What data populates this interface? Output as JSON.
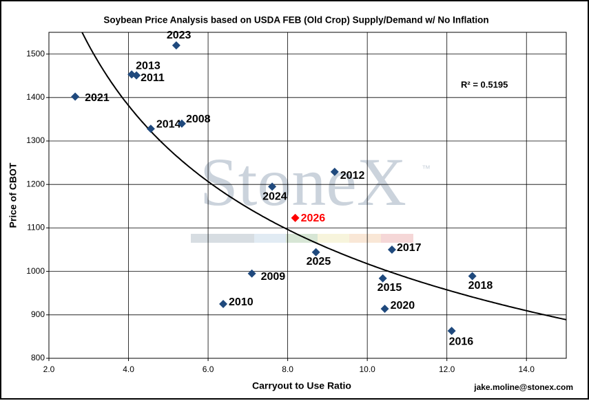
{
  "chart_data": {
    "type": "scatter",
    "title": "Soybean Price Analysis based on USDA FEB (Old Crop) Supply/Demand w/ No Inflation",
    "x_label": "Carryout to Use Ratio",
    "y_label": "Price of CBOT",
    "annotation": "R² = 0.5195",
    "credit": "jake.moline@stonex.com",
    "watermark": "StoneX",
    "watermark_mark": "™",
    "xlim": [
      2,
      15
    ],
    "xticks": [
      {
        "value": 2,
        "label": "2.0"
      },
      {
        "value": 4,
        "label": "4.0"
      },
      {
        "value": 6,
        "label": "6.0"
      },
      {
        "value": 8,
        "label": "8.0"
      },
      {
        "value": 10,
        "label": "10.0"
      },
      {
        "value": 12,
        "label": "12.0"
      },
      {
        "value": 14,
        "label": "14.0"
      }
    ],
    "ylim": [
      800,
      1550
    ],
    "yticks": [
      800,
      900,
      1000,
      1100,
      1200,
      1300,
      1400,
      1500
    ],
    "grid": true,
    "trendline": "power",
    "series": [
      {
        "color": "#1f497d",
        "label_color": "#000000",
        "labels": [
          "2021",
          "2013",
          "2011",
          "2023",
          "2014",
          "2008",
          "2024",
          "2012",
          "2025",
          "2017",
          "2009",
          "2015",
          "2018",
          "2010",
          "2020",
          "2016"
        ],
        "x": [
          2.66,
          4.08,
          4.2,
          5.2,
          4.56,
          5.34,
          7.61,
          9.18,
          8.71,
          10.62,
          7.1,
          10.39,
          12.64,
          6.38,
          10.44,
          12.12
        ],
        "values": [
          1402,
          1453,
          1451,
          1520,
          1328,
          1340,
          1195,
          1229,
          1044,
          1050,
          995,
          984,
          989,
          925,
          914,
          863
        ]
      },
      {
        "color": "#ff0000",
        "label_color": "#ff0000",
        "labels": [
          "2026"
        ],
        "x": [
          8.19
        ],
        "values": [
          1123
        ]
      }
    ]
  }
}
